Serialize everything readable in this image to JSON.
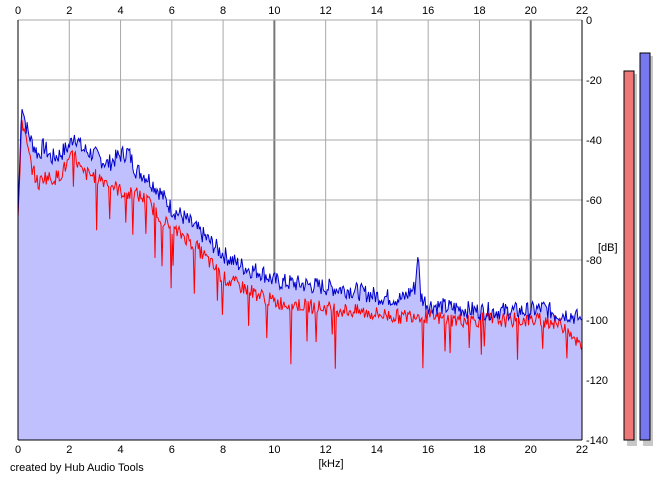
{
  "chart_data": {
    "type": "area",
    "xlabel": "[kHz]",
    "ylabel": "[dB]",
    "xlim": [
      0,
      22
    ],
    "ylim": [
      -140,
      0
    ],
    "x_ticks": [
      "0",
      "2",
      "4",
      "6",
      "8",
      "10",
      "12",
      "14",
      "16",
      "18",
      "20",
      "22"
    ],
    "y_ticks": [
      "0",
      "-20",
      "-40",
      "-60",
      "-80",
      "-100",
      "-120",
      "-140"
    ],
    "grid": true,
    "series": [
      {
        "color": "#0000cc",
        "fill": "#c0c0ff",
        "x": [
          0,
          0.15,
          0.3,
          0.5,
          0.8,
          1.0,
          1.3,
          1.6,
          2.0,
          2.2,
          2.5,
          3.0,
          3.5,
          4.0,
          4.3,
          4.6,
          5.0,
          5.5,
          6.0,
          6.5,
          7.0,
          7.5,
          8.0,
          8.5,
          9.0,
          9.5,
          10.0,
          11.0,
          12.0,
          13.0,
          14.0,
          15.0,
          15.5,
          15.6,
          15.7,
          16.0,
          17.0,
          18.0,
          19.0,
          20.0,
          20.5,
          21.0,
          21.5,
          22.0
        ],
        "values": [
          -65,
          -27,
          -35,
          -40,
          -45,
          -42,
          -46,
          -45,
          -42,
          -38,
          -43,
          -45,
          -48,
          -45,
          -44,
          -50,
          -52,
          -57,
          -63,
          -66,
          -70,
          -74,
          -78,
          -81,
          -83,
          -84,
          -87,
          -88,
          -89,
          -90,
          -92,
          -93,
          -89,
          -77,
          -92,
          -95,
          -96,
          -97,
          -97,
          -97,
          -96,
          -98,
          -98,
          -100
        ]
      },
      {
        "color": "#ff0000",
        "x": [
          0,
          0.15,
          0.3,
          0.5,
          0.8,
          1.0,
          1.3,
          1.6,
          2.0,
          2.2,
          2.5,
          3.0,
          3.5,
          4.0,
          4.3,
          4.6,
          5.0,
          5.5,
          6.0,
          6.5,
          7.0,
          7.5,
          8.0,
          8.5,
          9.0,
          9.5,
          10.0,
          11.0,
          12.0,
          13.0,
          14.0,
          15.0,
          15.5,
          16.0,
          17.0,
          18.0,
          19.0,
          20.0,
          20.5,
          21.0,
          21.5,
          22.0
        ],
        "values": [
          -66,
          -33,
          -40,
          -48,
          -55,
          -52,
          -53,
          -52,
          -47,
          -45,
          -51,
          -52,
          -54,
          -57,
          -58,
          -58,
          -60,
          -65,
          -70,
          -72,
          -76,
          -81,
          -86,
          -88,
          -90,
          -92,
          -94,
          -95,
          -96,
          -97,
          -98,
          -99,
          -98,
          -99,
          -100,
          -100,
          -100,
          -100,
          -100,
          -101,
          -103,
          -110
        ]
      }
    ]
  },
  "level_meters": {
    "left": {
      "color": "#ee7777",
      "level_db": -17
    },
    "right": {
      "color": "#7777ee",
      "level_db": -11
    }
  },
  "footer": {
    "credit": "created by Hub Audio Tools"
  }
}
